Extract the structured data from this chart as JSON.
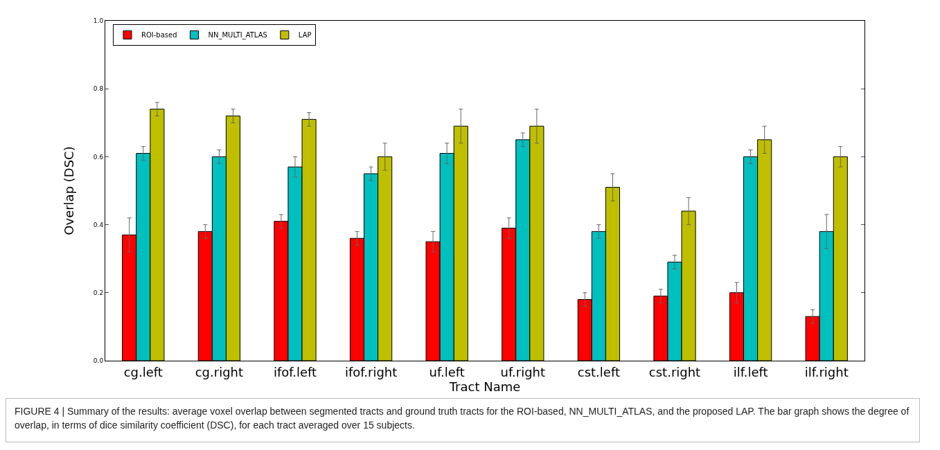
{
  "chart_data": {
    "type": "bar",
    "xlabel": "Tract Name",
    "ylabel": "Overlap (DSC)",
    "categories": [
      "cg.left",
      "cg.right",
      "ifof.left",
      "ifof.right",
      "uf.left",
      "uf.right",
      "cst.left",
      "cst.right",
      "ilf.left",
      "ilf.right"
    ],
    "series": [
      {
        "name": "ROI-based",
        "color": "#ff0000",
        "values": [
          0.37,
          0.38,
          0.41,
          0.36,
          0.35,
          0.39,
          0.18,
          0.19,
          0.2,
          0.13
        ],
        "errors": [
          0.05,
          0.02,
          0.02,
          0.02,
          0.03,
          0.03,
          0.02,
          0.02,
          0.03,
          0.02
        ]
      },
      {
        "name": "NN_MULTI_ATLAS",
        "color": "#00bfbf",
        "values": [
          0.61,
          0.6,
          0.57,
          0.55,
          0.61,
          0.65,
          0.38,
          0.29,
          0.6,
          0.38
        ],
        "errors": [
          0.02,
          0.02,
          0.03,
          0.02,
          0.03,
          0.02,
          0.02,
          0.02,
          0.02,
          0.05
        ]
      },
      {
        "name": "LAP",
        "color": "#bfbf00",
        "values": [
          0.74,
          0.72,
          0.71,
          0.6,
          0.69,
          0.69,
          0.51,
          0.44,
          0.65,
          0.6
        ],
        "errors": [
          0.02,
          0.02,
          0.02,
          0.04,
          0.05,
          0.05,
          0.04,
          0.04,
          0.04,
          0.03
        ]
      }
    ],
    "ylim": [
      0,
      1
    ],
    "yticks": [
      {
        "value": 0,
        "label": "0.0"
      },
      0.2,
      0.4,
      0.6,
      0.8,
      {
        "value": 1,
        "label": "1.0"
      }
    ],
    "grid": false,
    "legend": "top left",
    "annotations": [
      "FIGURE 4 | Summary of the results: average voxel overlap between segmented tracts and ground truth tracts for the ROI-based, NN_MULTI_ATLAS, and the proposed LAP. The bar graph shows the degree of overlap, in terms of dice similarity coefficient (DSC), for each tract averaged over 15 subjects."
    ]
  }
}
